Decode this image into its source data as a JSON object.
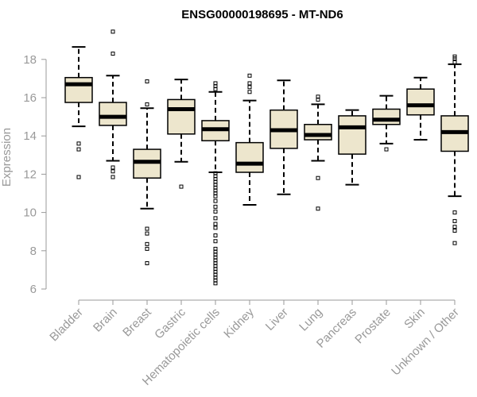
{
  "chart_data": {
    "type": "box",
    "title": "ENSG00000198695 - MT-ND6",
    "xlabel": "",
    "ylabel": "Expression",
    "ylim": [
      6,
      19.5
    ],
    "yticks": [
      6,
      8,
      10,
      12,
      14,
      16,
      18
    ],
    "box_fill": "#ede6cd",
    "box_stroke": "#000000",
    "categories": [
      "Bladder",
      "Brain",
      "Breast",
      "Gastric",
      "Hematopoietic cells",
      "Kidney",
      "Liver",
      "Lung",
      "Pancreas",
      "Prostate",
      "Skin",
      "Unknown / Other"
    ],
    "boxes": [
      {
        "category": "Bladder",
        "whisker_low": 14.5,
        "q1": 15.75,
        "median": 16.7,
        "q3": 17.05,
        "whisker_high": 18.65,
        "outliers": [
          11.85,
          13.3,
          13.6
        ]
      },
      {
        "category": "Brain",
        "whisker_low": 12.7,
        "q1": 14.55,
        "median": 15.0,
        "q3": 15.75,
        "whisker_high": 17.15,
        "outliers": [
          11.85,
          12.15,
          12.35,
          18.3,
          19.45
        ]
      },
      {
        "category": "Breast",
        "whisker_low": 10.2,
        "q1": 11.8,
        "median": 12.65,
        "q3": 13.3,
        "whisker_high": 15.45,
        "outliers": [
          7.35,
          8.1,
          8.35,
          8.9,
          9.15,
          15.65,
          16.85
        ]
      },
      {
        "category": "Gastric",
        "whisker_low": 12.65,
        "q1": 14.1,
        "median": 15.4,
        "q3": 15.9,
        "whisker_high": 16.95,
        "outliers": [
          11.35
        ]
      },
      {
        "category": "Hematopoietic cells",
        "whisker_low": 12.1,
        "q1": 13.75,
        "median": 14.35,
        "q3": 14.8,
        "whisker_high": 16.3,
        "outliers": [
          6.3,
          6.45,
          6.6,
          6.75,
          6.9,
          7.05,
          7.2,
          7.35,
          7.5,
          7.65,
          7.8,
          7.95,
          8.1,
          8.5,
          8.8,
          9.2,
          9.4,
          9.7,
          10.05,
          10.3,
          10.6,
          10.85,
          11.0,
          11.15,
          11.3,
          11.45,
          11.6,
          11.75,
          11.9,
          12.05,
          16.45,
          16.6,
          16.75
        ]
      },
      {
        "category": "Kidney",
        "whisker_low": 10.4,
        "q1": 12.1,
        "median": 12.55,
        "q3": 13.65,
        "whisker_high": 15.85,
        "outliers": [
          16.3,
          16.55,
          16.75,
          17.15
        ]
      },
      {
        "category": "Liver",
        "whisker_low": 10.95,
        "q1": 13.35,
        "median": 14.3,
        "q3": 15.35,
        "whisker_high": 16.9,
        "outliers": []
      },
      {
        "category": "Lung",
        "whisker_low": 12.7,
        "q1": 13.8,
        "median": 14.05,
        "q3": 14.6,
        "whisker_high": 15.65,
        "outliers": [
          10.2,
          11.8,
          15.9,
          16.05
        ]
      },
      {
        "category": "Pancreas",
        "whisker_low": 11.45,
        "q1": 13.05,
        "median": 14.45,
        "q3": 15.05,
        "whisker_high": 15.35,
        "outliers": []
      },
      {
        "category": "Prostate",
        "whisker_low": 13.6,
        "q1": 14.6,
        "median": 14.85,
        "q3": 15.4,
        "whisker_high": 16.1,
        "outliers": [
          13.3
        ]
      },
      {
        "category": "Skin",
        "whisker_low": 13.8,
        "q1": 15.1,
        "median": 15.6,
        "q3": 16.45,
        "whisker_high": 17.05,
        "outliers": []
      },
      {
        "category": "Unknown / Other",
        "whisker_low": 10.85,
        "q1": 13.2,
        "median": 14.2,
        "q3": 15.05,
        "whisker_high": 17.75,
        "outliers": [
          8.4,
          9.05,
          9.25,
          9.55,
          10.0,
          17.85,
          18.05,
          18.15
        ]
      }
    ]
  }
}
